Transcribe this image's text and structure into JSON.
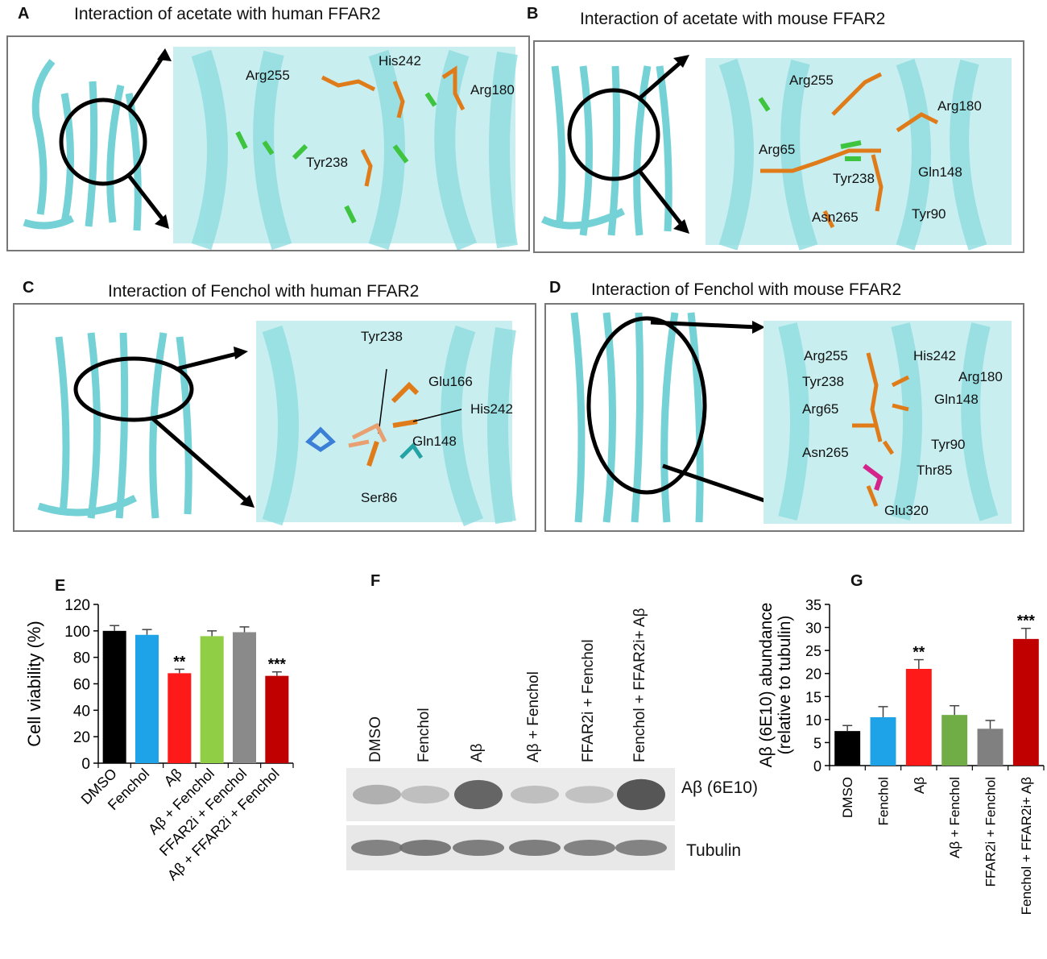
{
  "panel_A": {
    "letter": "A",
    "title": "Interaction of acetate with human FFAR2",
    "residues": [
      "Arg255",
      "His242",
      "Arg180",
      "Tyr238"
    ]
  },
  "panel_B": {
    "letter": "B",
    "title": "Interaction of acetate with mouse FFAR2",
    "residues": [
      "Arg255",
      "Arg180",
      "Arg65",
      "Tyr238",
      "Gln148",
      "Asn265",
      "Tyr90"
    ]
  },
  "panel_C": {
    "letter": "C",
    "title": "Interaction of Fenchol with human FFAR2",
    "residues": [
      "Tyr238",
      "Glu166",
      "His242",
      "Gln148",
      "Ser86"
    ]
  },
  "panel_D": {
    "letter": "D",
    "title": "Interaction of Fenchol with mouse FFAR2",
    "residues": [
      "Arg255",
      "His242",
      "Tyr238",
      "Arg180",
      "Gln148",
      "Arg65",
      "Tyr90",
      "Asn265",
      "Thr85",
      "Glu320"
    ]
  },
  "panel_F": {
    "letter": "F",
    "lanes": [
      "DMSO",
      "Fenchol",
      "Aβ",
      "Aβ + Fenchol",
      "FFAR2i + Fenchol",
      "Fenchol + FFAR2i+ Aβ"
    ],
    "band_labels": [
      "Aβ (6E10)",
      "Tubulin"
    ],
    "abeta_band_intensity": [
      0.3,
      0.22,
      0.72,
      0.22,
      0.2,
      0.8
    ],
    "tubulin_band_intensity": [
      0.55,
      0.6,
      0.58,
      0.58,
      0.55,
      0.55
    ]
  },
  "colors": {
    "protein": "#7fd8dc",
    "residue": "#e07b1a",
    "ligand": "#3ec43e",
    "black": "#000000",
    "blue": "#1fa3e8",
    "red": "#ff1a1a",
    "green": "#8fce45",
    "gray": "#8a8a8a",
    "darkred": "#c00000",
    "g_green": "#70ad47",
    "g_gray": "#808080"
  },
  "chart_data": [
    {
      "panel": "E",
      "type": "bar",
      "categories": [
        "DMSO",
        "Fenchol",
        "Aβ",
        "Aβ + Fenchol",
        "FFAR2i + Fenchol",
        "Aβ + FFAR2i + Fenchol"
      ],
      "values": [
        100,
        97,
        68,
        96,
        99,
        66
      ],
      "errors": [
        4,
        4,
        3,
        4,
        4,
        3
      ],
      "significance": [
        "",
        "",
        "**",
        "",
        "",
        "***"
      ],
      "bar_colors": [
        "#000000",
        "#1fa3e8",
        "#ff1a1a",
        "#8fce45",
        "#8a8a8a",
        "#c00000"
      ],
      "ylabel": "Cell viability (%)",
      "ylim": [
        0,
        120
      ],
      "yticks": [
        0,
        20,
        40,
        60,
        80,
        100,
        120
      ]
    },
    {
      "panel": "G",
      "type": "bar",
      "categories": [
        "DMSO",
        "Fenchol",
        "Aβ",
        "Aβ + Fenchol",
        "FFAR2i + Fenchol",
        "Fenchol + FFAR2i+ Aβ"
      ],
      "values": [
        7.5,
        10.5,
        21,
        11,
        8,
        27.5
      ],
      "errors": [
        1.2,
        2.3,
        2.0,
        2.0,
        1.8,
        2.3
      ],
      "significance": [
        "",
        "",
        "**",
        "",
        "",
        "***"
      ],
      "bar_colors": [
        "#000000",
        "#1fa3e8",
        "#ff1a1a",
        "#70ad47",
        "#808080",
        "#c00000"
      ],
      "ylabel": "Aβ (6E10) abundance (relative to tubulin)",
      "ylim": [
        0,
        35
      ],
      "yticks": [
        0,
        5,
        10,
        15,
        20,
        25,
        30,
        35
      ]
    }
  ]
}
